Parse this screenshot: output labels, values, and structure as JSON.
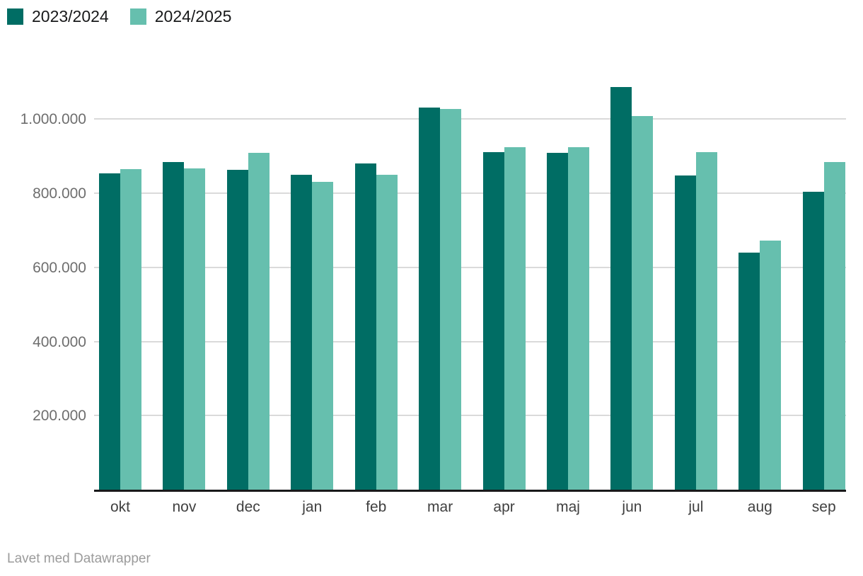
{
  "legend": {
    "items": [
      {
        "label": "2023/2024",
        "color": "#006d64"
      },
      {
        "label": "2024/2025",
        "color": "#66bfae"
      }
    ]
  },
  "footer": {
    "text": "Lavet med Datawrapper"
  },
  "chart_data": {
    "type": "bar",
    "title": "",
    "categories": [
      "okt",
      "nov",
      "dec",
      "jan",
      "feb",
      "mar",
      "apr",
      "maj",
      "jun",
      "jul",
      "aug",
      "sep"
    ],
    "series": [
      {
        "name": "2023/2024",
        "color": "#006d64",
        "values": [
          853000,
          884000,
          864000,
          850000,
          881000,
          1031000,
          911000,
          909000,
          1087000,
          848000,
          640000,
          804000
        ]
      },
      {
        "name": "2024/2025",
        "color": "#66bfae",
        "values": [
          865000,
          867000,
          908000,
          830000,
          849000,
          1027000,
          924000,
          925000,
          1008000,
          911000,
          673000,
          885000
        ]
      }
    ],
    "xlabel": "",
    "ylabel": "",
    "ylim": [
      0,
      1140000
    ],
    "grid": true,
    "legend_position": "top-left",
    "yticks": [
      {
        "value": 200000,
        "label": "200.000"
      },
      {
        "value": 400000,
        "label": "400.000"
      },
      {
        "value": 600000,
        "label": "600.000"
      },
      {
        "value": 800000,
        "label": "800.000"
      },
      {
        "value": 1000000,
        "label": "1.000.000"
      }
    ]
  }
}
